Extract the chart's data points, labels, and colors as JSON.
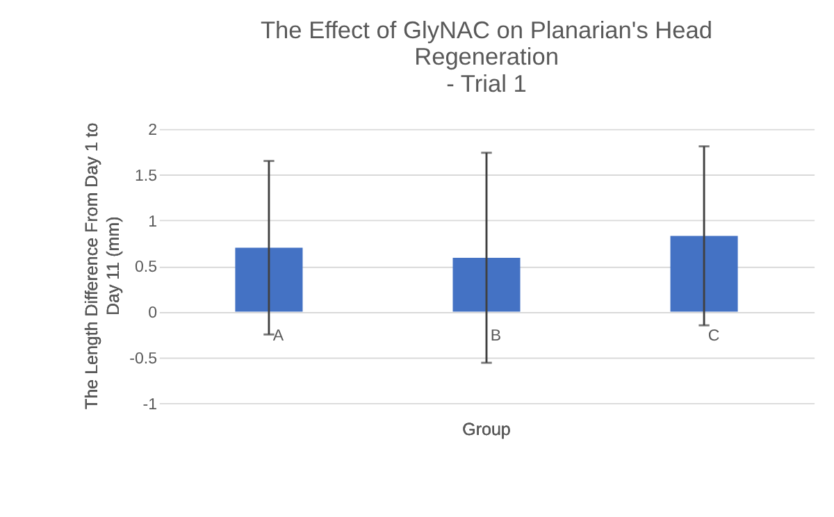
{
  "chart_data": {
    "type": "bar",
    "title": "The Effect of GlyNAC on Planarian's Head\nRegeneration\n- Trial 1",
    "xlabel": "Group",
    "ylabel": "The Length Difference From Day 1 to Day 11 (mm)",
    "categories": [
      "A",
      "B",
      "C"
    ],
    "series": [
      {
        "color": "#4472c4",
        "values": [
          0.7,
          0.59,
          0.83
        ],
        "errors": [
          0.95,
          1.15,
          0.98
        ]
      }
    ],
    "ylim": [
      -1,
      2
    ],
    "yticks": [
      -1,
      -0.5,
      0,
      0.5,
      1,
      1.5,
      2
    ],
    "grid": "y"
  }
}
